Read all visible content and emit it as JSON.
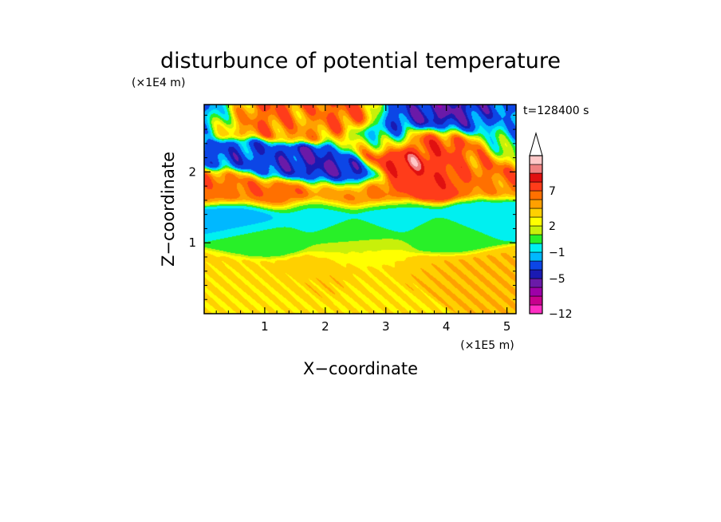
{
  "chart_data": {
    "type": "heatmap",
    "subtype": "filled-contour",
    "title": "disturbunce of potential temperature",
    "xlabel": "X−coordinate",
    "ylabel": "Z−coordinate",
    "x_scale_label": "(×1E5 m)",
    "y_scale_label": "(×1E4 m)",
    "time_label": "t=128400 s",
    "xlim": [
      0,
      5.15
    ],
    "ylim": [
      0,
      2.95
    ],
    "x_ticks": [
      {
        "value": 1,
        "label": "1"
      },
      {
        "value": 2,
        "label": "2"
      },
      {
        "value": 3,
        "label": "3"
      },
      {
        "value": 4,
        "label": "4"
      },
      {
        "value": 5,
        "label": "5"
      }
    ],
    "y_ticks": [
      {
        "value": 1,
        "label": "1"
      },
      {
        "value": 2,
        "label": "2"
      }
    ],
    "colorbar": {
      "levels": [
        {
          "upper": -12,
          "color": "#ff2ec3"
        },
        {
          "upper": -10,
          "color": "#c8008e"
        },
        {
          "upper": -8,
          "color": "#9e00a8"
        },
        {
          "upper": -6,
          "color": "#6a1aa8"
        },
        {
          "upper": -5,
          "color": "#1a1ab2"
        },
        {
          "upper": -3,
          "color": "#0c46e6"
        },
        {
          "upper": -2,
          "color": "#00b8ff"
        },
        {
          "upper": -1,
          "color": "#00f0f0"
        },
        {
          "upper": 0,
          "color": "#28f028"
        },
        {
          "upper": 1,
          "color": "#c8f00a"
        },
        {
          "upper": 2,
          "color": "#ffff00"
        },
        {
          "upper": 3,
          "color": "#ffd000"
        },
        {
          "upper": 4,
          "color": "#ffa000"
        },
        {
          "upper": 5,
          "color": "#ff7000"
        },
        {
          "upper": 7,
          "color": "#ff3c1a"
        },
        {
          "upper": 8,
          "color": "#e01010"
        },
        {
          "upper": 9,
          "color": "#f08080"
        },
        {
          "upper": 10,
          "color": "#ffc8c8"
        }
      ],
      "tick_labels": [
        {
          "label": "7",
          "value": 7
        },
        {
          "label": "2",
          "value": 2
        },
        {
          "label": "−1",
          "value": -1
        },
        {
          "label": "−5",
          "value": -5
        },
        {
          "label": "−12",
          "value": -12
        }
      ],
      "extend": "max"
    },
    "field_features": [
      {
        "x": 4.8,
        "z": 0.55,
        "value": 3
      },
      {
        "x": 4.0,
        "z": 0.5,
        "value": 3
      },
      {
        "x": 3.6,
        "z": 0.5,
        "value": 2.6
      },
      {
        "x": 2.9,
        "z": 0.45,
        "value": 2.2
      },
      {
        "x": 2.0,
        "z": 0.55,
        "value": 2.6
      },
      {
        "x": 1.5,
        "z": 0.45,
        "value": 2.4
      },
      {
        "x": 0.8,
        "z": 0.45,
        "value": 2.2
      },
      {
        "x": 0.2,
        "z": 0.5,
        "value": 2.2
      },
      {
        "x": 3.0,
        "z": 0.2,
        "value": 2
      },
      {
        "x": 1.0,
        "z": 0.15,
        "value": 2
      },
      {
        "x": 2.6,
        "z": 0.88,
        "value": 1.2
      },
      {
        "x": 1.0,
        "z": 1.1,
        "value": -0.6
      },
      {
        "x": 2.5,
        "z": 1.1,
        "value": -0.6
      },
      {
        "x": 4.0,
        "z": 1.15,
        "value": -0.6
      },
      {
        "x": 0.7,
        "z": 1.35,
        "value": -2.6
      },
      {
        "x": 1.8,
        "z": 1.4,
        "value": -1.4
      },
      {
        "x": 3.2,
        "z": 1.4,
        "value": -1.5
      },
      {
        "x": 4.6,
        "z": 1.4,
        "value": -1.8
      },
      {
        "x": 0.5,
        "z": 1.8,
        "value": 4.5
      },
      {
        "x": 1.2,
        "z": 1.7,
        "value": 5
      },
      {
        "x": 2.2,
        "z": 1.75,
        "value": 4.2
      },
      {
        "x": 3.0,
        "z": 1.75,
        "value": 4.5
      },
      {
        "x": 3.8,
        "z": 1.85,
        "value": 5
      },
      {
        "x": 4.6,
        "z": 1.85,
        "value": 4
      },
      {
        "x": 1.2,
        "z": 2.1,
        "value": -4.5
      },
      {
        "x": 1.7,
        "z": 2.15,
        "value": -5.5
      },
      {
        "x": 2.2,
        "z": 2.0,
        "value": -5.5
      },
      {
        "x": 2.35,
        "z": 2.0,
        "value": -6.5
      },
      {
        "x": 0.6,
        "z": 2.25,
        "value": -4
      },
      {
        "x": 3.1,
        "z": 2.15,
        "value": 7.5
      },
      {
        "x": 3.7,
        "z": 2.45,
        "value": 6
      },
      {
        "x": 4.3,
        "z": 2.35,
        "value": 5.5
      },
      {
        "x": 4.7,
        "z": 2.1,
        "value": 5
      },
      {
        "x": 3.7,
        "z": 1.85,
        "value": 8
      },
      {
        "x": 3.0,
        "z": 2.55,
        "value": -4.5
      },
      {
        "x": 3.4,
        "z": 2.8,
        "value": -4
      },
      {
        "x": 3.85,
        "z": 2.78,
        "value": -7.5
      },
      {
        "x": 4.3,
        "z": 2.7,
        "value": -4
      },
      {
        "x": 4.9,
        "z": 2.5,
        "value": -2
      },
      {
        "x": 0.1,
        "z": 2.75,
        "value": -4
      },
      {
        "x": 0.5,
        "z": 2.7,
        "value": 4
      },
      {
        "x": 1.0,
        "z": 2.75,
        "value": 5
      },
      {
        "x": 1.6,
        "z": 2.65,
        "value": 3.5
      },
      {
        "x": 2.4,
        "z": 2.75,
        "value": 5
      },
      {
        "x": 2.8,
        "z": 2.4,
        "value": 2
      },
      {
        "x": 5.05,
        "z": 2.3,
        "value": -1
      }
    ]
  }
}
